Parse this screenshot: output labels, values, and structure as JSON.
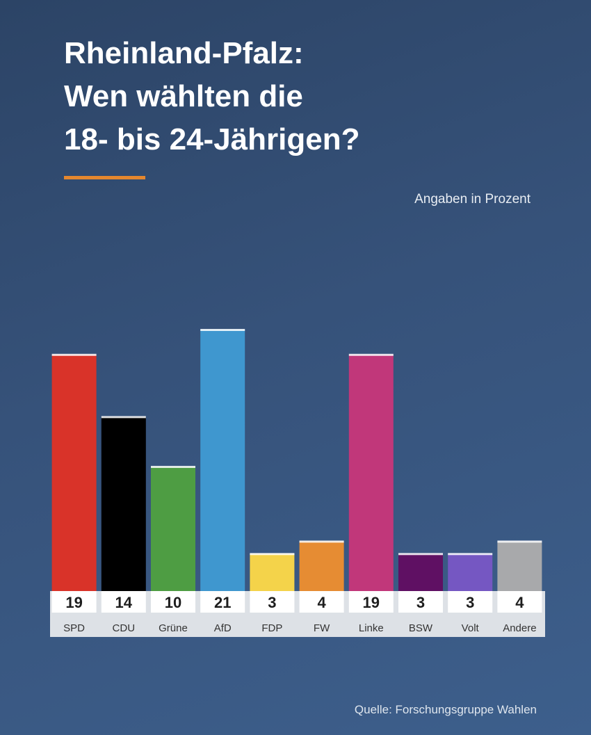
{
  "title_lines": [
    "Rheinland-Pfalz:",
    "Wen wählten die",
    "18- bis 24-Jährigen?"
  ],
  "unit_note": "Angaben in Prozent",
  "source": "Quelle: Forschungsgruppe Wahlen",
  "colors": {
    "background": "#36527a",
    "accent": "#e5872e"
  },
  "chart_data": {
    "type": "bar",
    "categories": [
      "SPD",
      "CDU",
      "Grüne",
      "AfD",
      "FDP",
      "FW",
      "Linke",
      "BSW",
      "Volt",
      "Andere"
    ],
    "values": [
      19,
      14,
      10,
      21,
      3,
      4,
      19,
      3,
      3,
      4
    ],
    "colors": [
      "#d93329",
      "#000000",
      "#4e9d43",
      "#3f97cf",
      "#f4d34a",
      "#e68c33",
      "#c1377a",
      "#5f1063",
      "#7557c2",
      "#a8a9ab"
    ],
    "value_labels": [
      "19",
      "14",
      "10",
      "21",
      "3",
      "4",
      "19",
      "3",
      "3",
      "4"
    ],
    "ylim": [
      0,
      21
    ],
    "grid": false,
    "legend": "none"
  }
}
